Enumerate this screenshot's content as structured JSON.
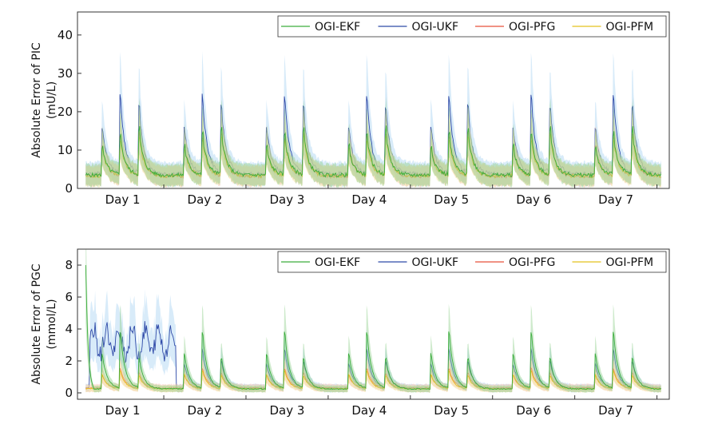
{
  "chart_data": [
    {
      "type": "line",
      "panel": "top",
      "xlabel": "",
      "ylabel": [
        "Absolute Error of PIC",
        "(mU/L)"
      ],
      "x_unit": "days",
      "xlim": [
        0,
        7.2
      ],
      "ylim": [
        0,
        46
      ],
      "y_ticks": [
        0,
        10,
        20,
        30,
        40
      ],
      "x_tick_labels": [
        "Day 1",
        "Day 2",
        "Day 3",
        "Day 4",
        "Day 5",
        "Day 6",
        "Day 7"
      ],
      "legend": {
        "placement": "top-right",
        "entries": [
          "OGI-EKF",
          "OGI-UKF",
          "OGI-PFG",
          "OGI-PFM"
        ]
      },
      "shaded_bands": true,
      "series": [
        {
          "name": "OGI-EKF",
          "color": "#3cad3c",
          "band_color": "#93d18f",
          "baseline": 3.5,
          "daily_peaks": [
            7,
            10,
            11
          ],
          "peak_spike": [
            13,
            15,
            16
          ]
        },
        {
          "name": "OGI-UKF",
          "color": "#2f4aa8",
          "band_color": "#a9d2f2",
          "baseline": 3.8,
          "daily_peaks": [
            12,
            20,
            17
          ],
          "peak_spike": [
            14,
            22,
            20
          ]
        },
        {
          "name": "OGI-PFG",
          "color": "#e8503a",
          "band_color": "#f7c1a8",
          "baseline": 3.2,
          "daily_peaks": [
            8,
            10,
            11
          ],
          "peak_spike": [
            10,
            12,
            13
          ]
        },
        {
          "name": "OGI-PFM",
          "color": "#e3c21d",
          "band_color": "#f4e3a0",
          "baseline": 3.3,
          "daily_peaks": [
            7,
            9,
            10
          ],
          "peak_spike": [
            9,
            11,
            12
          ]
        }
      ]
    },
    {
      "type": "line",
      "panel": "bottom",
      "xlabel": "",
      "ylabel": [
        "Absolute Error of PGC",
        "(mmol/L)"
      ],
      "x_unit": "days",
      "xlim": [
        0,
        7.2
      ],
      "ylim": [
        -0.4,
        9
      ],
      "y_ticks": [
        0,
        2,
        4,
        6,
        8
      ],
      "x_tick_labels": [
        "Day 1",
        "Day 2",
        "Day 3",
        "Day 4",
        "Day 5",
        "Day 6",
        "Day 7"
      ],
      "legend": {
        "placement": "top-right",
        "entries": [
          "OGI-EKF",
          "OGI-UKF",
          "OGI-PFG",
          "OGI-PFM"
        ]
      },
      "shaded_bands": true,
      "initial_spike": {
        "series": "OGI-EKF",
        "value": 8.0,
        "x": 0.05
      },
      "series": [
        {
          "name": "OGI-EKF",
          "color": "#3cad3c",
          "band_color": "#93d18f",
          "baseline": 0.25,
          "daily_peaks": [
            2.2,
            3.5,
            1.8
          ],
          "peak_spike": [
            2.5,
            4.0,
            2.2
          ]
        },
        {
          "name": "OGI-UKF",
          "color": "#2f4aa8",
          "band_color": "#a9d2f2",
          "baseline": 0.3,
          "daily_peaks": [
            1.5,
            2.4,
            1.6
          ],
          "peak_spike": [
            1.7,
            2.6,
            1.8
          ],
          "day1_level": 3.2
        },
        {
          "name": "OGI-PFG",
          "color": "#e8503a",
          "band_color": "#f7c1a8",
          "baseline": 0.3,
          "daily_peaks": [
            0.8,
            1.2,
            0.9
          ],
          "peak_spike": [
            1.0,
            1.4,
            1.0
          ]
        },
        {
          "name": "OGI-PFM",
          "color": "#e3c21d",
          "band_color": "#f4e3a0",
          "baseline": 0.25,
          "daily_peaks": [
            0.9,
            1.1,
            0.8
          ],
          "peak_spike": [
            1.0,
            1.3,
            0.9
          ]
        }
      ]
    }
  ]
}
